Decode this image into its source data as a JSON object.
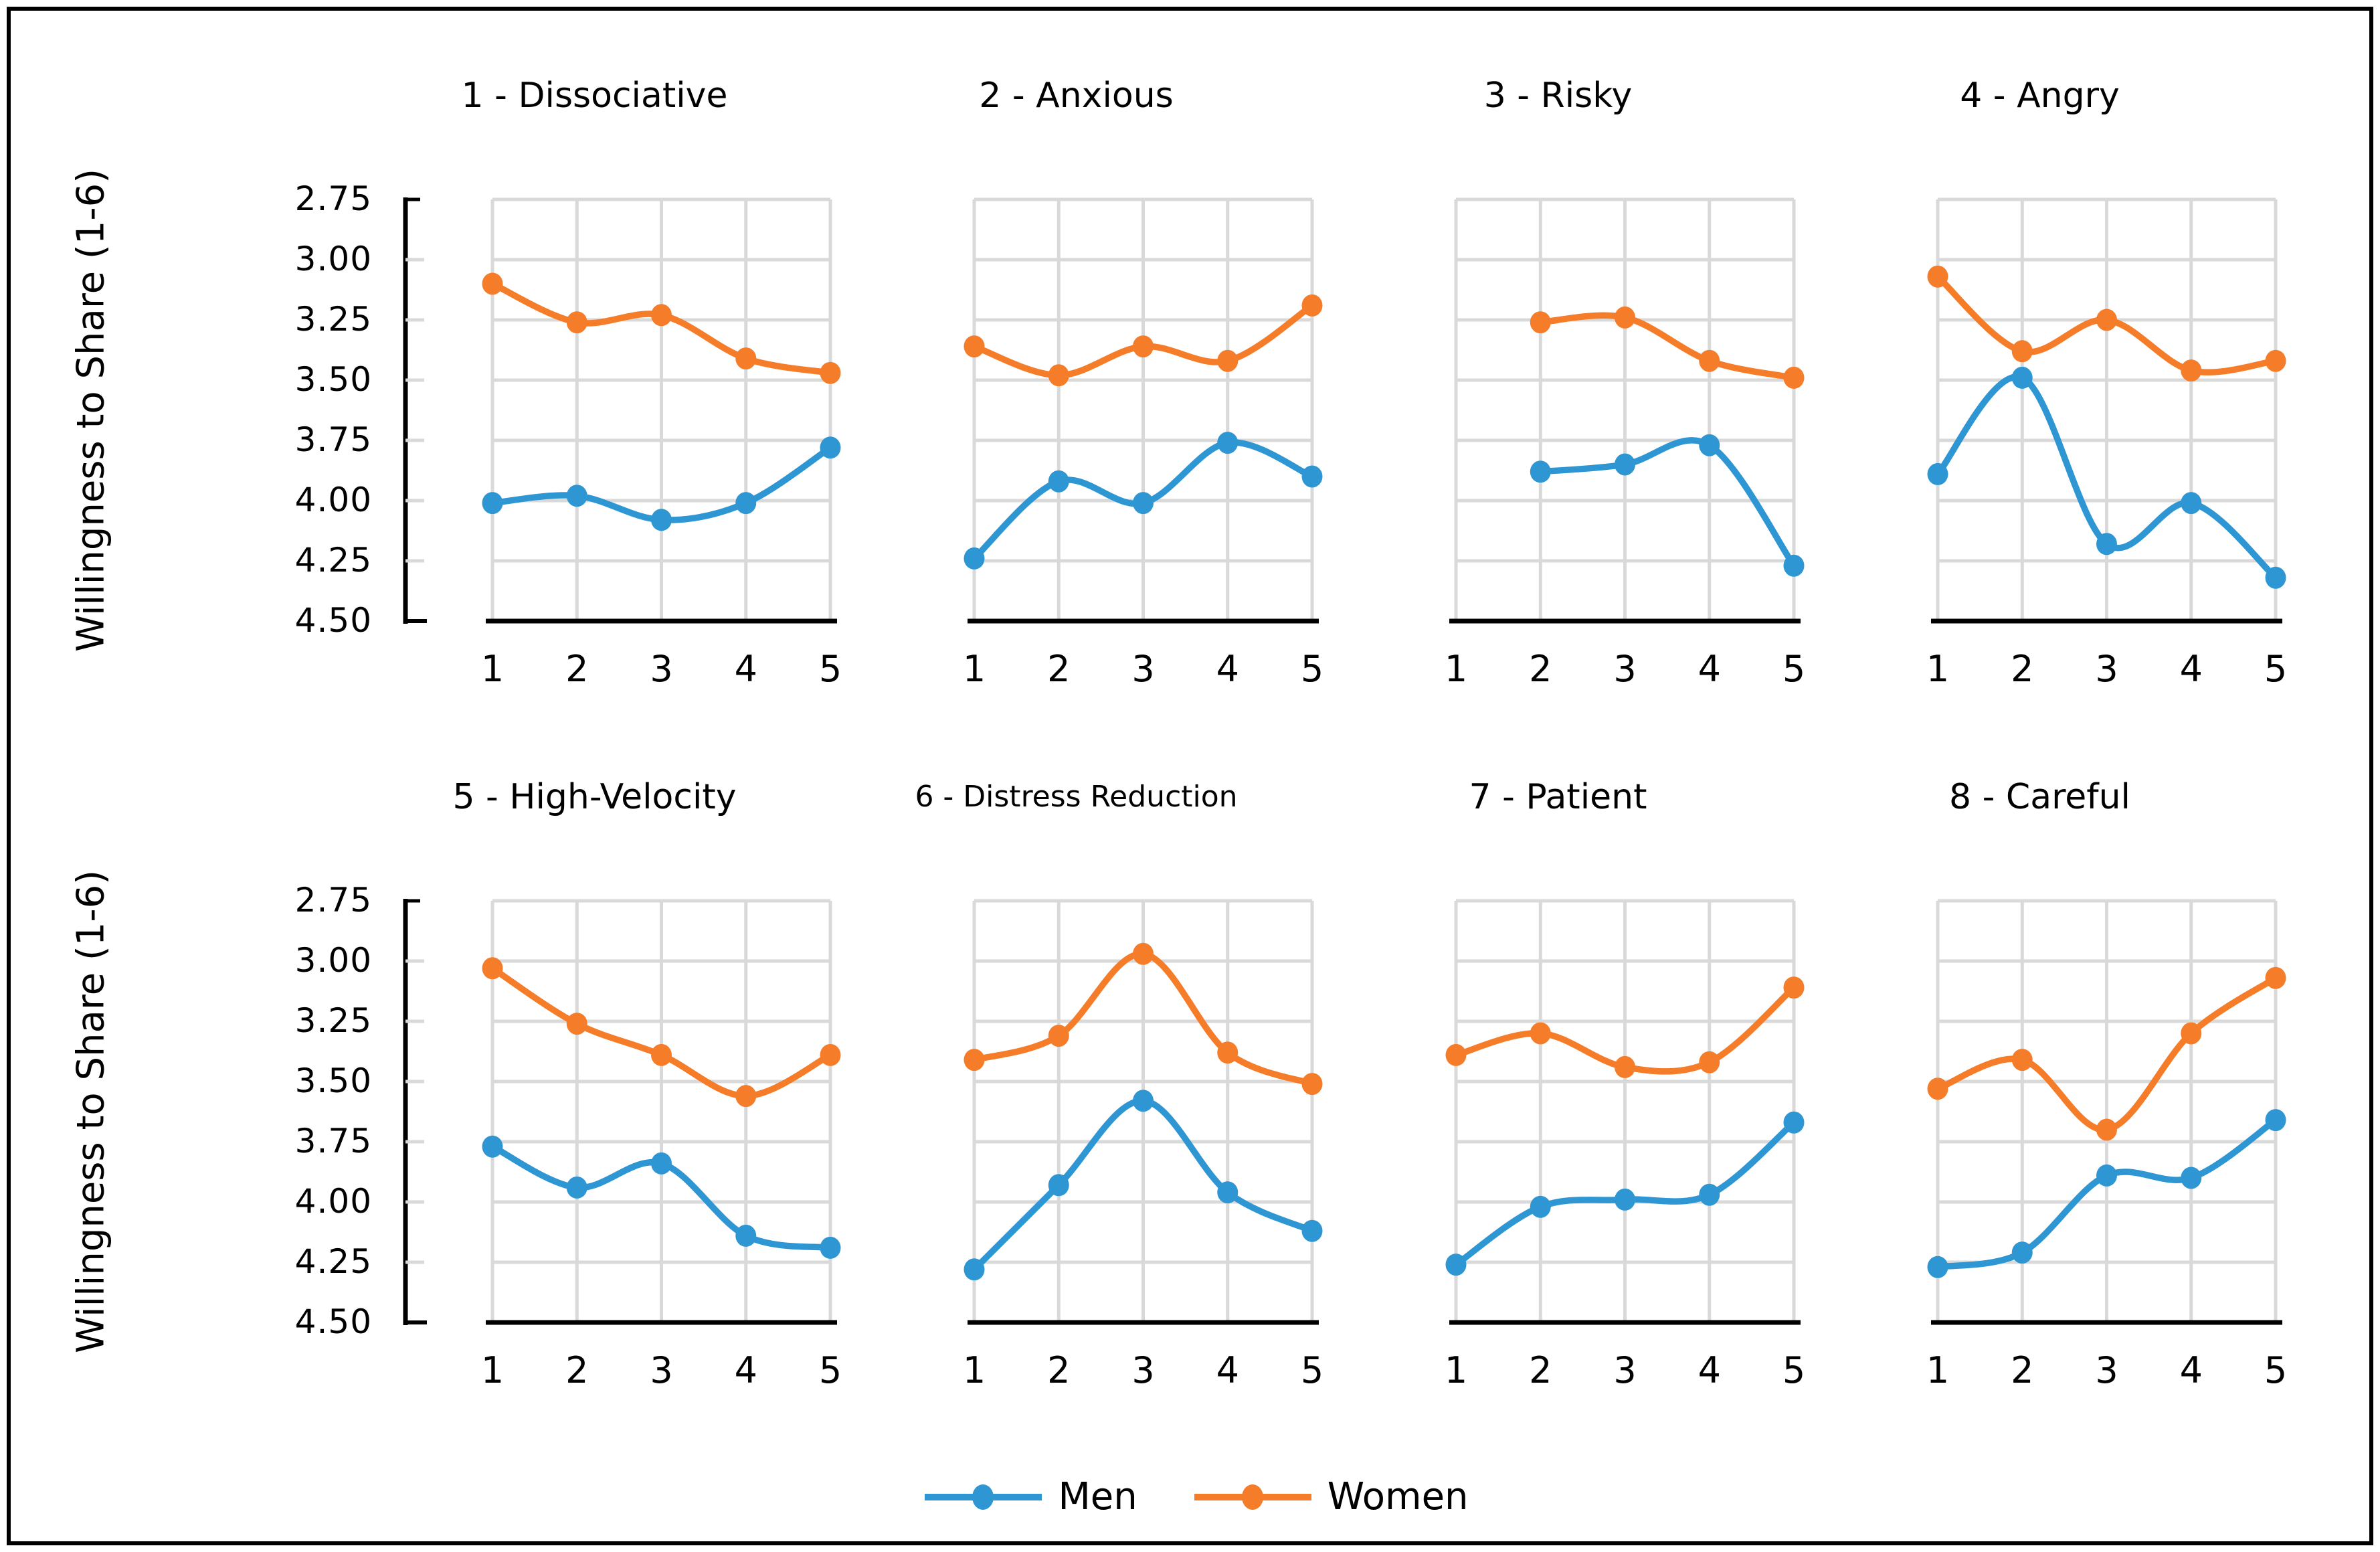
{
  "y_axis": {
    "label": "Willingness to Share (1-6)",
    "ticks": [
      "2.75",
      "3.00",
      "3.25",
      "3.50",
      "3.75",
      "4.00",
      "4.25",
      "4.50"
    ],
    "min": 2.75,
    "max": 4.5,
    "inverted": true
  },
  "x_ticks": [
    "1",
    "2",
    "3",
    "4",
    "5"
  ],
  "colors": {
    "men": "#2E96D3",
    "women": "#F57C28",
    "gridline": "#D9D9D9",
    "axis": "#000000"
  },
  "legend": {
    "position": "bottom-center",
    "items": [
      {
        "label": "Men",
        "color": "#2E96D3"
      },
      {
        "label": "Women",
        "color": "#F57C28"
      }
    ]
  },
  "chart_data": [
    {
      "type": "line",
      "title": "1 - Dissociative",
      "x": [
        1,
        2,
        3,
        4,
        5
      ],
      "ylim": [
        2.75,
        4.5
      ],
      "y_inverted": true,
      "grid": true,
      "series": [
        {
          "name": "Men",
          "values": [
            4.01,
            3.98,
            4.08,
            4.01,
            3.78
          ]
        },
        {
          "name": "Women",
          "values": [
            3.1,
            3.26,
            3.23,
            3.41,
            3.47
          ]
        }
      ]
    },
    {
      "type": "line",
      "title": "2 - Anxious",
      "x": [
        1,
        2,
        3,
        4,
        5
      ],
      "ylim": [
        2.75,
        4.5
      ],
      "y_inverted": true,
      "grid": true,
      "series": [
        {
          "name": "Men",
          "values": [
            4.24,
            3.92,
            4.01,
            3.76,
            3.9
          ]
        },
        {
          "name": "Women",
          "values": [
            3.36,
            3.48,
            3.36,
            3.42,
            3.19
          ]
        }
      ]
    },
    {
      "type": "line",
      "title": "3 - Risky",
      "x": [
        1,
        2,
        3,
        4,
        5
      ],
      "ylim": [
        2.75,
        4.5
      ],
      "y_inverted": true,
      "grid": true,
      "series": [
        {
          "name": "Men",
          "values": [
            null,
            3.88,
            3.85,
            3.77,
            4.27
          ]
        },
        {
          "name": "Women",
          "values": [
            null,
            3.26,
            3.24,
            3.42,
            3.49
          ]
        }
      ]
    },
    {
      "type": "line",
      "title": "4 - Angry",
      "x": [
        1,
        2,
        3,
        4,
        5
      ],
      "ylim": [
        2.75,
        4.5
      ],
      "y_inverted": true,
      "grid": true,
      "series": [
        {
          "name": "Men",
          "values": [
            3.89,
            3.49,
            4.18,
            4.01,
            4.32
          ]
        },
        {
          "name": "Women",
          "values": [
            3.07,
            3.38,
            3.25,
            3.46,
            3.42
          ]
        }
      ]
    },
    {
      "type": "line",
      "title": "5 - High-Velocity",
      "x": [
        1,
        2,
        3,
        4,
        5
      ],
      "ylim": [
        2.75,
        4.5
      ],
      "y_inverted": true,
      "grid": true,
      "series": [
        {
          "name": "Men",
          "values": [
            3.77,
            3.94,
            3.84,
            4.14,
            4.19
          ]
        },
        {
          "name": "Women",
          "values": [
            3.03,
            3.26,
            3.39,
            3.56,
            3.39
          ]
        }
      ]
    },
    {
      "type": "line",
      "title": "6 - Distress Reduction",
      "x": [
        1,
        2,
        3,
        4,
        5
      ],
      "ylim": [
        2.75,
        4.5
      ],
      "y_inverted": true,
      "grid": true,
      "title_small": true,
      "series": [
        {
          "name": "Men",
          "values": [
            4.28,
            3.93,
            3.58,
            3.96,
            4.12
          ]
        },
        {
          "name": "Women",
          "values": [
            3.41,
            3.31,
            2.97,
            3.38,
            3.51
          ]
        }
      ]
    },
    {
      "type": "line",
      "title": "7 - Patient",
      "x": [
        1,
        2,
        3,
        4,
        5
      ],
      "ylim": [
        2.75,
        4.5
      ],
      "y_inverted": true,
      "grid": true,
      "series": [
        {
          "name": "Men",
          "values": [
            4.26,
            4.02,
            3.99,
            3.97,
            3.67
          ]
        },
        {
          "name": "Women",
          "values": [
            3.39,
            3.3,
            3.44,
            3.42,
            3.11
          ]
        }
      ]
    },
    {
      "type": "line",
      "title": "8 - Careful",
      "x": [
        1,
        2,
        3,
        4,
        5
      ],
      "ylim": [
        2.75,
        4.5
      ],
      "y_inverted": true,
      "grid": true,
      "series": [
        {
          "name": "Men",
          "values": [
            4.27,
            4.21,
            3.89,
            3.9,
            3.66
          ]
        },
        {
          "name": "Women",
          "values": [
            3.53,
            3.41,
            3.7,
            3.3,
            3.07
          ]
        }
      ]
    }
  ]
}
